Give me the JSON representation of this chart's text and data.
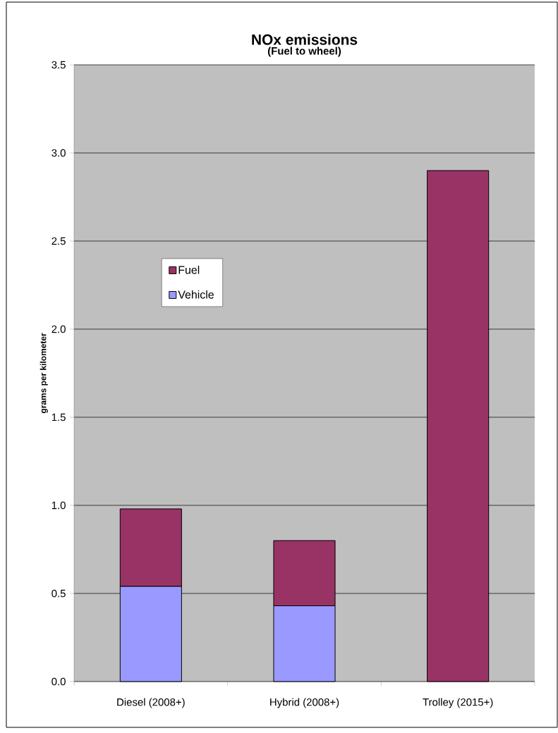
{
  "chart_data": {
    "type": "bar",
    "title": "NOx emissions",
    "subtitle": "(Fuel to wheel)",
    "ylabel": "grams per kilometer",
    "categories": [
      "Diesel (2008+)",
      "Hybrid (2008+)",
      "Trolley (2015+)"
    ],
    "series": [
      {
        "name": "Vehicle",
        "color": "#9999ff",
        "values": [
          0.54,
          0.43,
          0
        ]
      },
      {
        "name": "Fuel",
        "color": "#993366",
        "values": [
          0.44,
          0.37,
          2.9
        ]
      }
    ],
    "stacked": true,
    "ylim": [
      0,
      3.5
    ],
    "yticks": [
      {
        "value": 0,
        "label": "0.0"
      },
      {
        "value": 0.5,
        "label": "0.5"
      },
      {
        "value": 1,
        "label": "1.0"
      },
      {
        "value": 1.5,
        "label": "1.5"
      },
      {
        "value": 2,
        "label": "2.0"
      },
      {
        "value": 2.5,
        "label": "2.5"
      },
      {
        "value": 3,
        "label": "3.0"
      },
      {
        "value": 3.5,
        "label": "3.5"
      }
    ],
    "grid": "y",
    "legend": "left"
  }
}
